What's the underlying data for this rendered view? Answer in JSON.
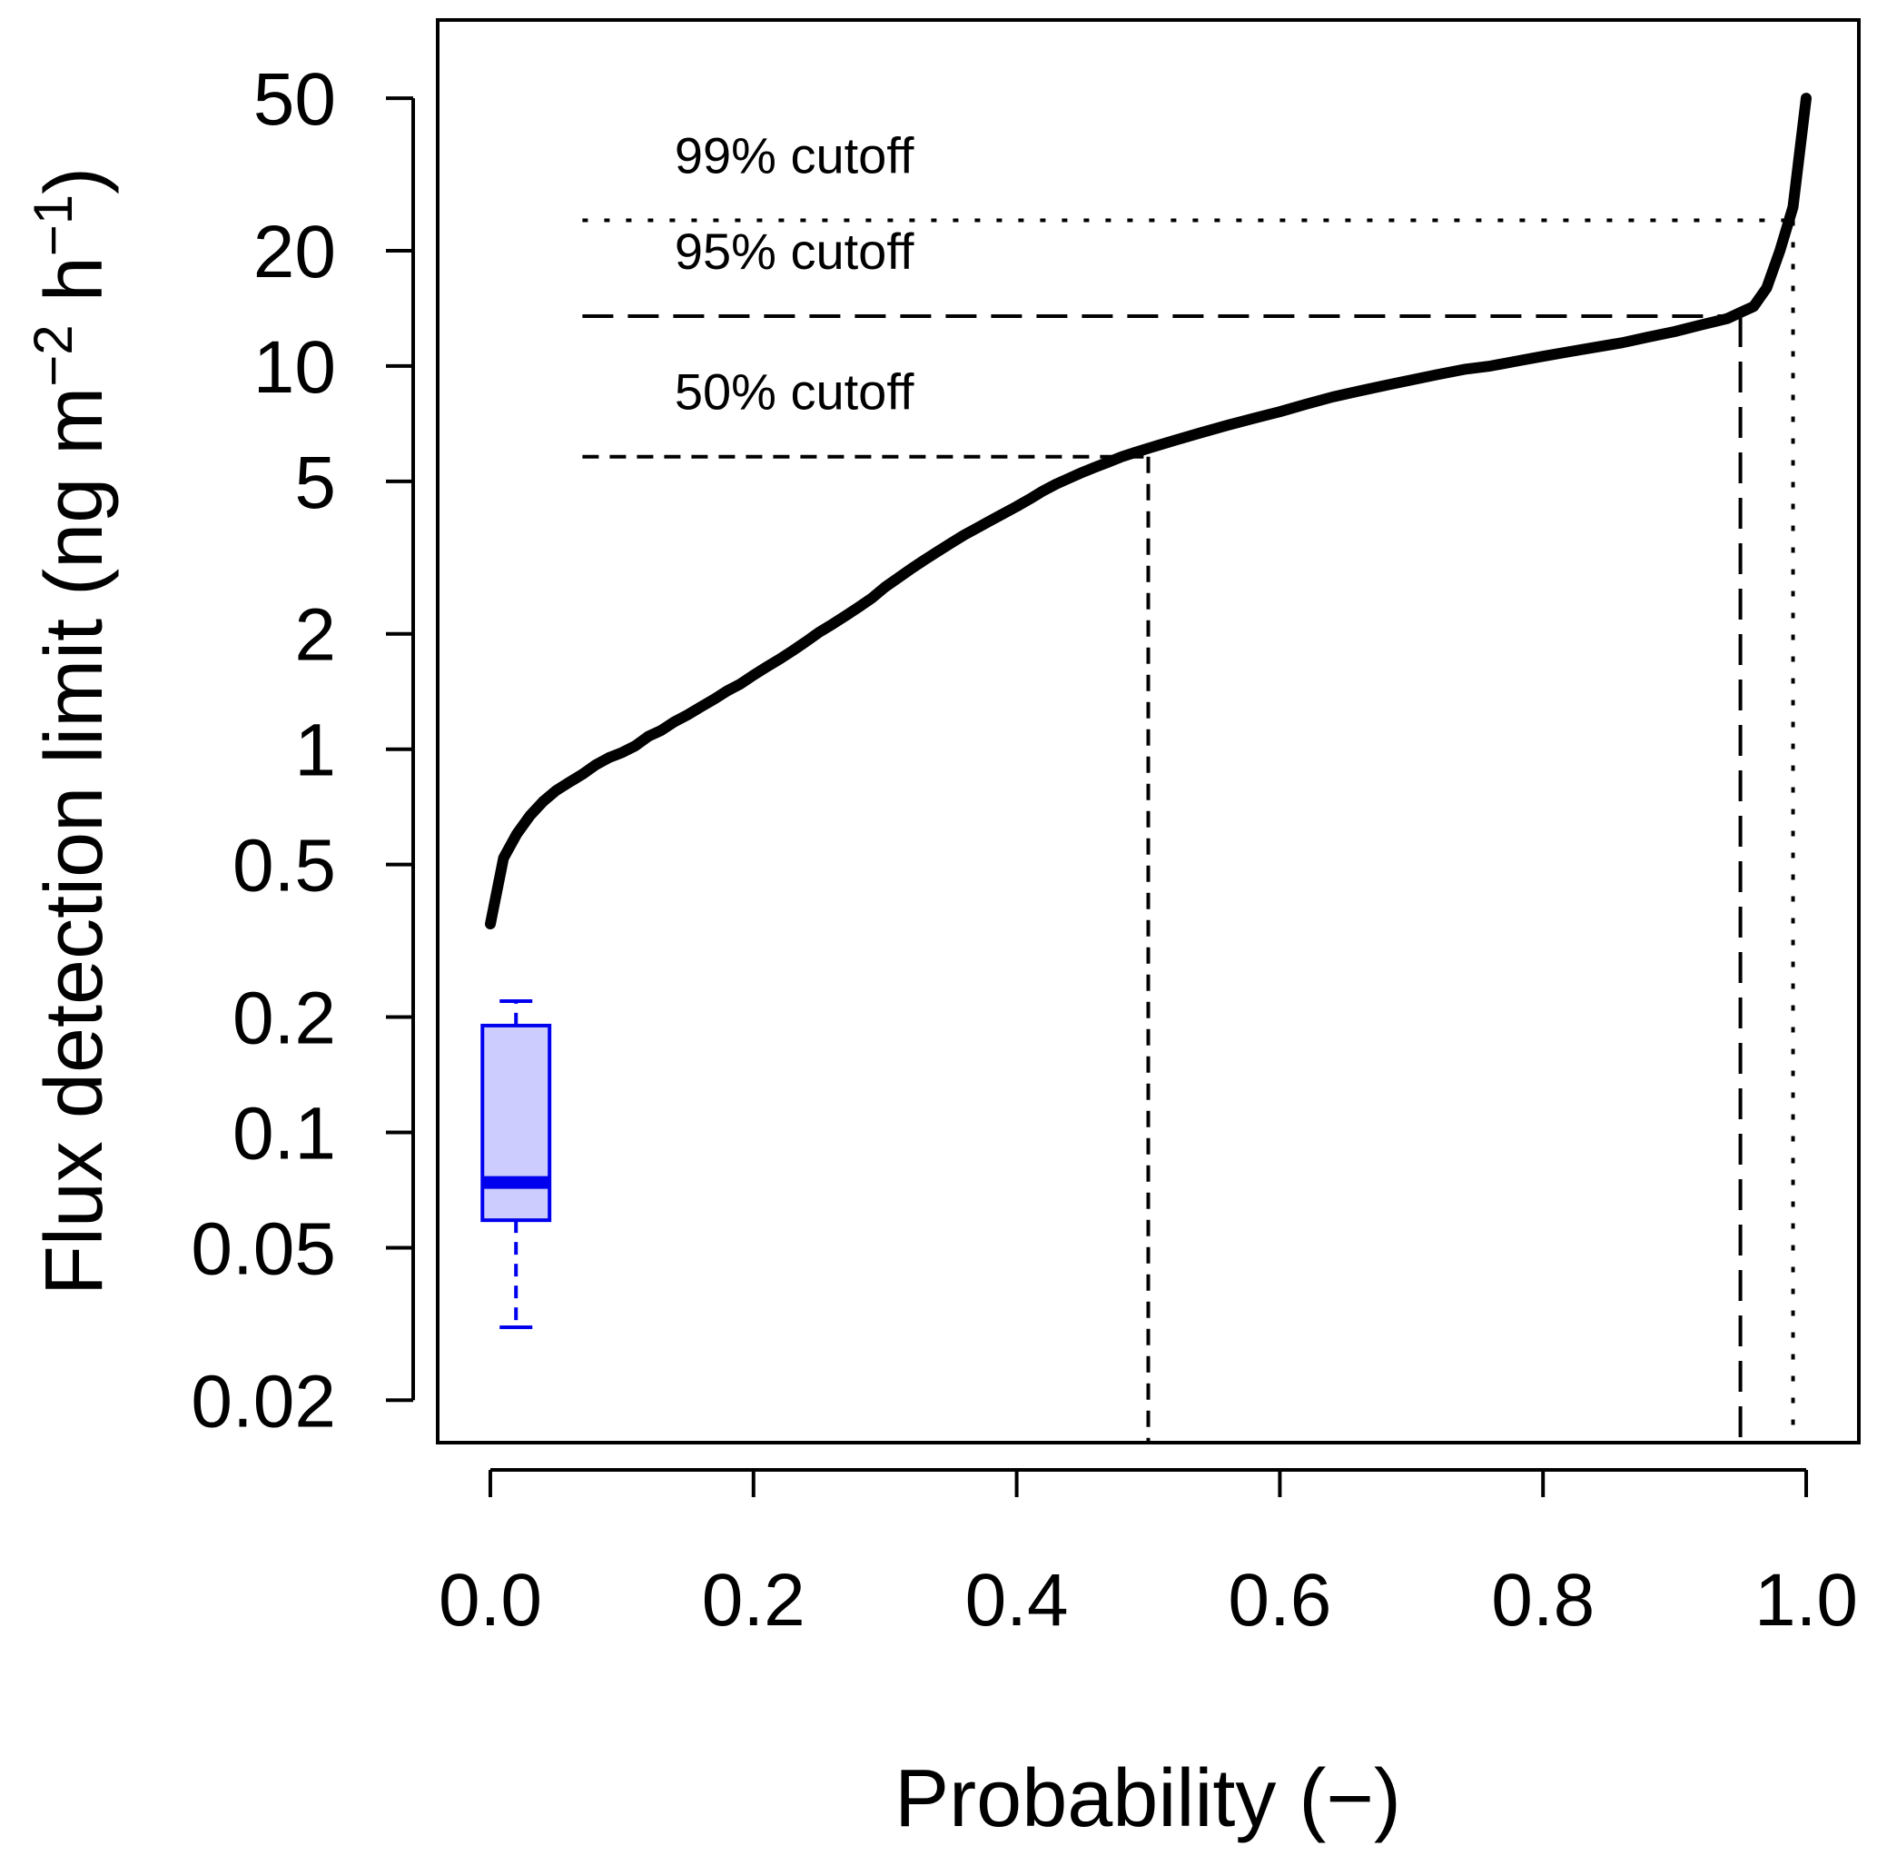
{
  "chart_data": {
    "type": "line",
    "xlabel": "Probability (−)",
    "ylabel": {
      "prefix": "Flux detection limit (ng m",
      "sup1": "−2",
      "mid": " h",
      "sup2": "−1",
      "suffix": ")"
    },
    "x_scale": "linear",
    "y_scale": "log",
    "xlim": [
      -0.04,
      1.04
    ],
    "ylim": [
      0.0155,
      80
    ],
    "grid": false,
    "legend": "none",
    "x_ticks": [
      {
        "value": 0.0,
        "label": "0.0"
      },
      {
        "value": 0.2,
        "label": "0.2"
      },
      {
        "value": 0.4,
        "label": "0.4"
      },
      {
        "value": 0.6,
        "label": "0.6"
      },
      {
        "value": 0.8,
        "label": "0.8"
      },
      {
        "value": 1.0,
        "label": "1.0"
      }
    ],
    "y_ticks": [
      {
        "value": 0.02,
        "label": "0.02"
      },
      {
        "value": 0.05,
        "label": "0.05"
      },
      {
        "value": 0.1,
        "label": "0.1"
      },
      {
        "value": 0.2,
        "label": "0.2"
      },
      {
        "value": 0.5,
        "label": "0.5"
      },
      {
        "value": 1,
        "label": "1"
      },
      {
        "value": 2,
        "label": "2"
      },
      {
        "value": 5,
        "label": "5"
      },
      {
        "value": 10,
        "label": "10"
      },
      {
        "value": 20,
        "label": "20"
      },
      {
        "value": 50,
        "label": "50"
      }
    ],
    "series": [
      {
        "color": "#000000",
        "x": [
          0.0,
          0.01,
          0.02,
          0.03,
          0.04,
          0.05,
          0.06,
          0.07,
          0.08,
          0.09,
          0.1,
          0.11,
          0.12,
          0.13,
          0.14,
          0.15,
          0.16,
          0.17,
          0.18,
          0.19,
          0.2,
          0.21,
          0.22,
          0.23,
          0.24,
          0.25,
          0.26,
          0.27,
          0.28,
          0.29,
          0.3,
          0.31,
          0.32,
          0.33,
          0.34,
          0.35,
          0.36,
          0.37,
          0.38,
          0.39,
          0.4,
          0.41,
          0.42,
          0.43,
          0.44,
          0.45,
          0.46,
          0.47,
          0.48,
          0.49,
          0.5,
          0.52,
          0.54,
          0.56,
          0.58,
          0.6,
          0.62,
          0.64,
          0.66,
          0.68,
          0.7,
          0.72,
          0.74,
          0.76,
          0.78,
          0.8,
          0.82,
          0.84,
          0.86,
          0.88,
          0.9,
          0.92,
          0.94,
          0.95,
          0.96,
          0.97,
          0.98,
          0.99,
          1.0
        ],
        "y": [
          0.35,
          0.52,
          0.6,
          0.67,
          0.73,
          0.78,
          0.82,
          0.86,
          0.91,
          0.95,
          0.98,
          1.02,
          1.08,
          1.12,
          1.18,
          1.23,
          1.29,
          1.35,
          1.42,
          1.48,
          1.56,
          1.64,
          1.72,
          1.81,
          1.91,
          2.02,
          2.12,
          2.23,
          2.35,
          2.48,
          2.65,
          2.8,
          2.96,
          3.12,
          3.28,
          3.45,
          3.62,
          3.78,
          3.95,
          4.12,
          4.3,
          4.5,
          4.72,
          4.92,
          5.1,
          5.28,
          5.45,
          5.62,
          5.8,
          5.95,
          6.1,
          6.4,
          6.7,
          7.0,
          7.3,
          7.6,
          7.95,
          8.3,
          8.6,
          8.9,
          9.2,
          9.5,
          9.8,
          10.0,
          10.3,
          10.6,
          10.9,
          11.2,
          11.5,
          11.9,
          12.3,
          12.8,
          13.3,
          13.8,
          14.3,
          16.0,
          20.0,
          26.0,
          50.0
        ]
      }
    ],
    "cutoffs": [
      {
        "label": "99% cutoff",
        "probability": 0.99,
        "value": 24.0,
        "style": "dotted"
      },
      {
        "label": "95% cutoff",
        "probability": 0.95,
        "value": 13.5,
        "style": "dashed-long"
      },
      {
        "label": "50% cutoff",
        "probability": 0.5,
        "value": 5.8,
        "style": "dashed"
      }
    ],
    "boxplot": {
      "color": "#0000ee",
      "fill": "#ccccff",
      "whisker_low": 0.031,
      "q1": 0.059,
      "median": 0.074,
      "q3": 0.19,
      "whisker_high": 0.22
    }
  }
}
